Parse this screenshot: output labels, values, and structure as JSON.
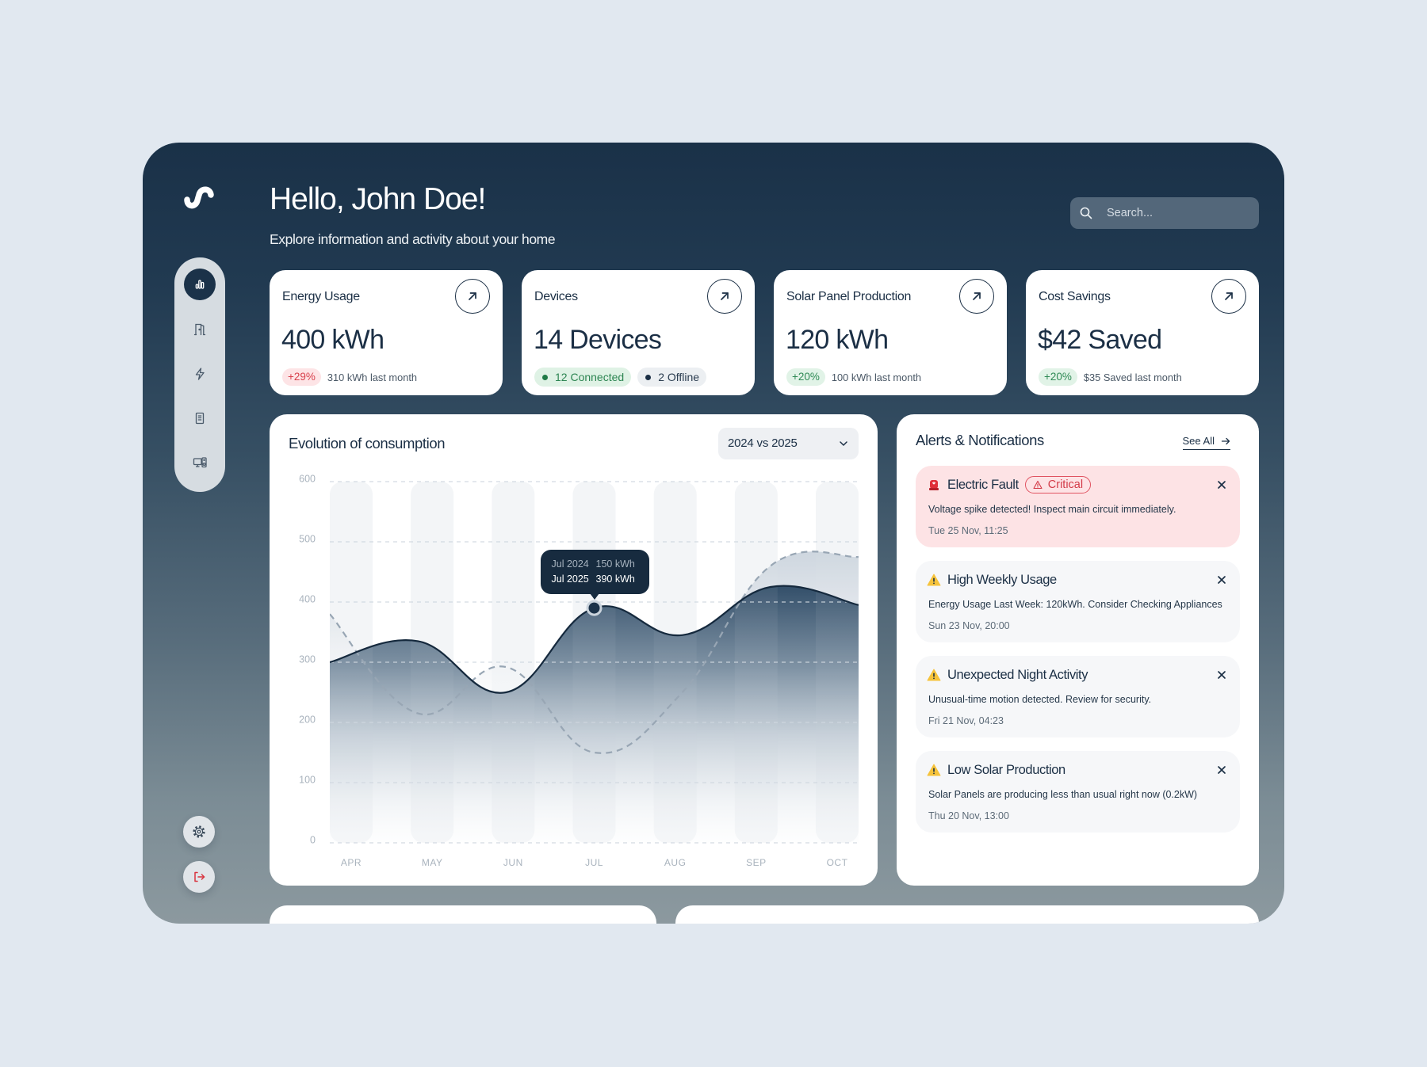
{
  "app": {
    "logo_icon": "logo-wave-icon"
  },
  "header": {
    "greeting": "Hello, John Doe!",
    "subtitle": "Explore information and activity about your home"
  },
  "search": {
    "placeholder": "Search...",
    "icon": "search-icon"
  },
  "sidebar": {
    "items": [
      {
        "icon": "bar-chart-icon",
        "active": true
      },
      {
        "icon": "door-icon",
        "active": false
      },
      {
        "icon": "lightning-icon",
        "active": false
      },
      {
        "icon": "receipt-icon",
        "active": false
      },
      {
        "icon": "devices-icon",
        "active": false
      }
    ],
    "footer": [
      {
        "icon": "gear-icon"
      },
      {
        "icon": "logout-icon"
      }
    ]
  },
  "stats": [
    {
      "title": "Energy Usage",
      "value": "400 kWh",
      "badge": "+29%",
      "badge_type": "negative",
      "note": "310 kWh last month",
      "icon": "arrow-up-right-icon"
    },
    {
      "title": "Devices",
      "value": "14 Devices",
      "pills": [
        {
          "label": "12 Connected",
          "status": "online"
        },
        {
          "label": "2 Offline",
          "status": "offline"
        }
      ],
      "icon": "arrow-up-right-icon"
    },
    {
      "title": "Solar Panel Production",
      "value": "120 kWh",
      "badge": "+20%",
      "badge_type": "positive",
      "note": "100 kWh last month",
      "icon": "arrow-up-right-icon"
    },
    {
      "title": "Cost Savings",
      "value": "$42 Saved",
      "badge": "+20%",
      "badge_type": "positive",
      "note": "$35 Saved last month",
      "icon": "arrow-up-right-icon"
    }
  ],
  "chart_card": {
    "title": "Evolution of consumption",
    "period_select": "2024 vs 2025",
    "tooltip": {
      "rows": [
        {
          "label": "Jul 2024",
          "value": "150 kWh"
        },
        {
          "label": "Jul 2025",
          "value": "390 kWh"
        }
      ]
    }
  },
  "alerts": {
    "title": "Alerts & Notifications",
    "see_all": "See All",
    "items": [
      {
        "title": "Electric Fault",
        "badge": "Critical",
        "severity": "critical",
        "icon": "siren-icon",
        "message": "Voltage spike detected! Inspect main circuit immediately.",
        "time": "Tue 25 Nov, 11:25"
      },
      {
        "title": "High Weekly Usage",
        "severity": "warning",
        "icon": "warning-icon",
        "message": "Energy Usage Last Week: 120kWh. Consider Checking Appliances",
        "time": "Sun 23 Nov, 20:00"
      },
      {
        "title": "Unexpected Night Activity",
        "severity": "warning",
        "icon": "warning-icon",
        "message": "Unusual-time motion detected. Review for security.",
        "time": "Fri 21 Nov, 04:23"
      },
      {
        "title": "Low Solar Production",
        "severity": "warning",
        "icon": "warning-icon",
        "message": "Solar Panels are producing less than usual right now (0.2kW)",
        "time": "Thu 20 Nov, 13:00"
      }
    ]
  },
  "colors": {
    "brand_dark": "#1b3249",
    "critical": "#d9414b",
    "positive": "#2f8a55",
    "negative": "#d8404c",
    "warning": "#f6c33b"
  },
  "chart_data": {
    "type": "area",
    "title": "Evolution of consumption",
    "xlabel": "",
    "ylabel": "kWh",
    "categories": [
      "APR",
      "MAY",
      "JUN",
      "JUL",
      "AUG",
      "SEP",
      "OCT"
    ],
    "series": [
      {
        "name": "2024",
        "style": "dashed",
        "color": "#98a6b4",
        "values": [
          380,
          215,
          292,
          150,
          250,
          460,
          475
        ]
      },
      {
        "name": "2025",
        "style": "solid",
        "color": "#15293d",
        "values": [
          300,
          335,
          250,
          390,
          345,
          425,
          395
        ]
      }
    ],
    "yticks": [
      0,
      100,
      200,
      300,
      400,
      500,
      600
    ],
    "ylim": [
      0,
      600
    ],
    "grid": true,
    "legend": "none",
    "tooltip_index": 3,
    "annotations": [
      "Jul 2024 150 kWh",
      "Jul 2025 390 kWh"
    ]
  }
}
